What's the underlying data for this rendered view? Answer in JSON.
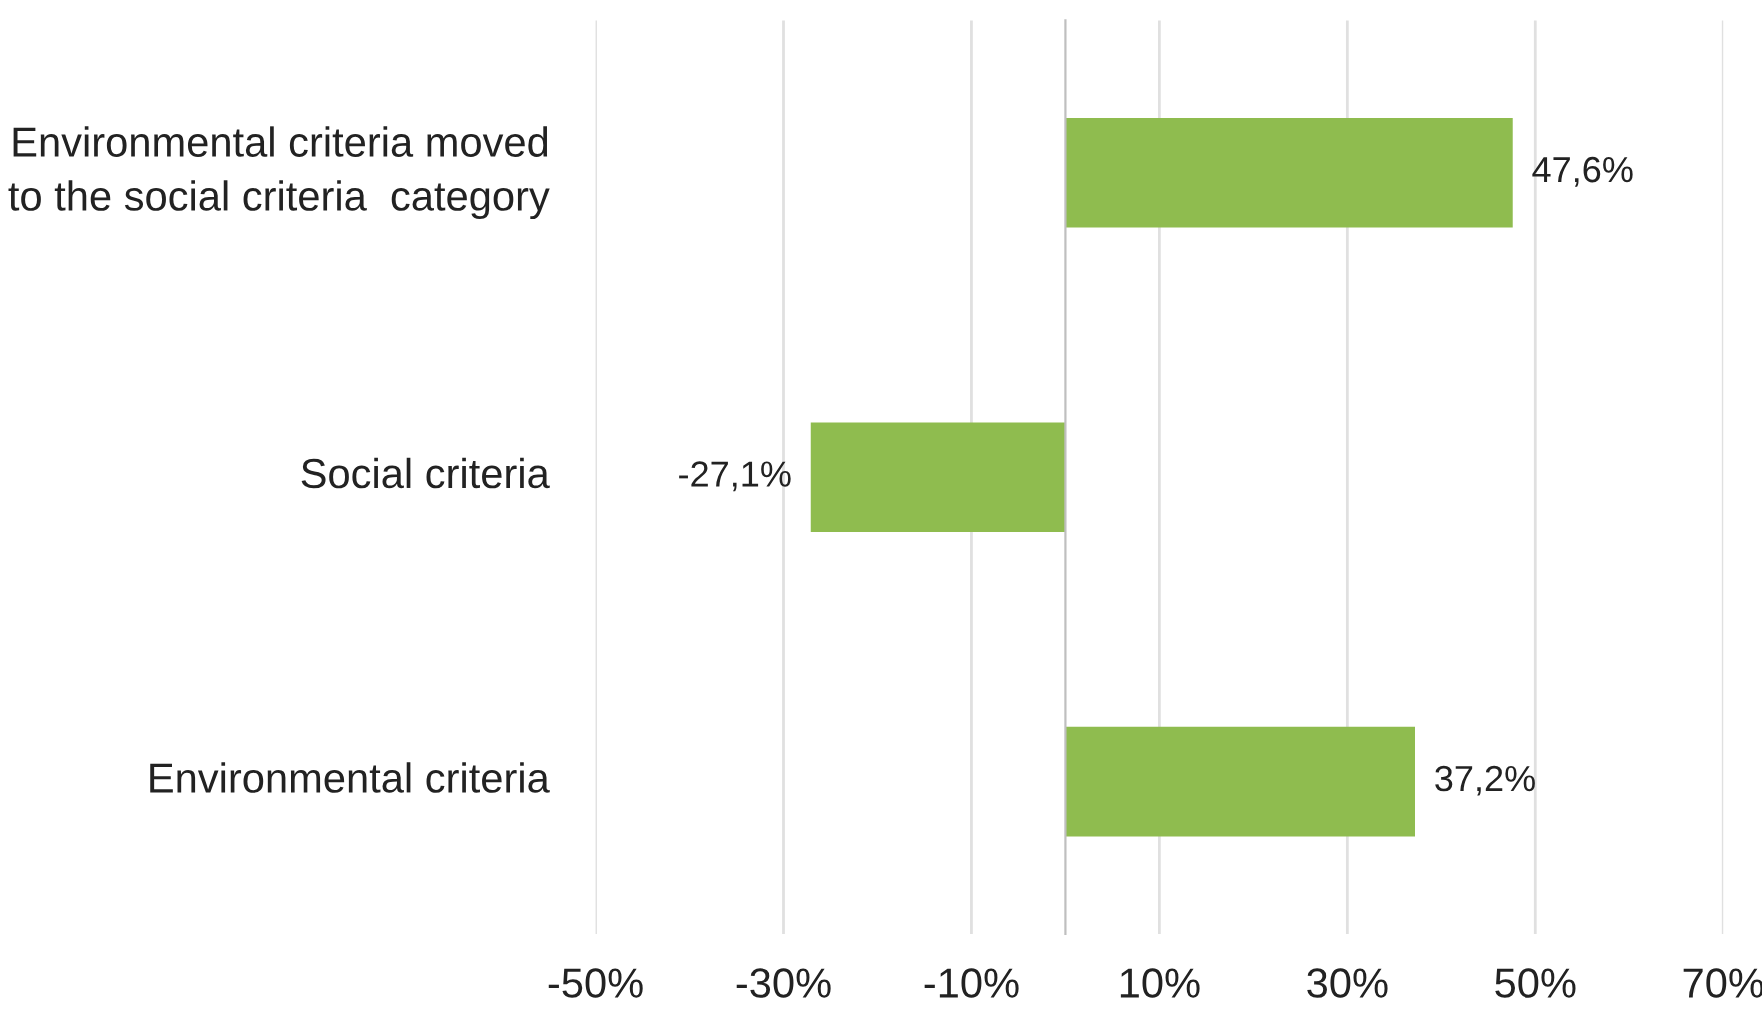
{
  "chart_data": {
    "type": "bar",
    "orientation": "horizontal",
    "categories": [
      "Environmental criteria moved\nto the social criteria  category",
      "Social criteria",
      "Environmental criteria"
    ],
    "values": [
      47.6,
      -27.1,
      37.2
    ],
    "value_labels": [
      "47,6%",
      "-27,1%",
      "37,2%"
    ],
    "color": "#8fbc4f",
    "xlim": [
      -50,
      70
    ],
    "xticks": [
      {
        "value": -50,
        "label": "-50%"
      },
      {
        "value": -30,
        "label": "-30%"
      },
      {
        "value": -10,
        "label": "-10%"
      },
      {
        "value": 10,
        "label": "10%"
      },
      {
        "value": 30,
        "label": "30%"
      },
      {
        "value": 50,
        "label": "50%"
      },
      {
        "value": 70,
        "label": "70%"
      }
    ],
    "grid": "x",
    "legend": false
  }
}
